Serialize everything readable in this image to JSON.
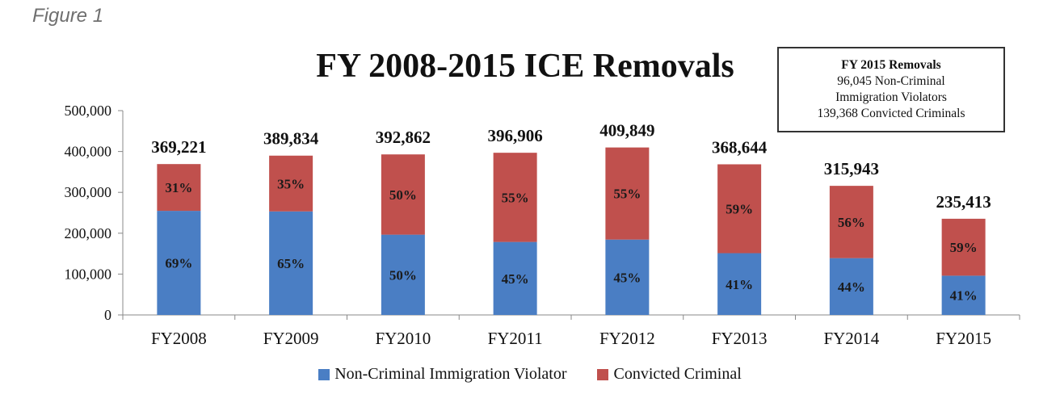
{
  "figure_label": "Figure 1",
  "info_box": {
    "heading": "FY 2015 Removals",
    "line1": "96,045 Non-Criminal",
    "line2": "Immigration Violators",
    "line3": "139,368 Convicted Criminals"
  },
  "colors": {
    "non_criminal": "#4a7ec4",
    "criminal": "#c0504d"
  },
  "chart_data": {
    "type": "bar",
    "stacked": true,
    "title": "FY 2008-2015 ICE Removals",
    "xlabel": "",
    "ylabel": "",
    "ylim": [
      0,
      500000
    ],
    "y_ticks": [
      0,
      100000,
      200000,
      300000,
      400000,
      500000
    ],
    "y_tick_labels": [
      "0",
      "100,000",
      "200,000",
      "300,000",
      "400,000",
      "500,000"
    ],
    "grid": false,
    "legend_position": "bottom",
    "categories": [
      "FY2008",
      "FY2009",
      "FY2010",
      "FY2011",
      "FY2012",
      "FY2013",
      "FY2014",
      "FY2015"
    ],
    "totals": [
      369221,
      389834,
      392862,
      396906,
      409849,
      368644,
      315943,
      235413
    ],
    "total_labels": [
      "369,221",
      "389,834",
      "392,862",
      "396,906",
      "409,849",
      "368,644",
      "315,943",
      "235,413"
    ],
    "series": [
      {
        "name": "Non-Criminal Immigration Violator",
        "values": [
          254762,
          253392,
          196431,
          178608,
          184432,
          151144,
          139015,
          96045
        ],
        "labels": [
          "69%",
          "65%",
          "50%",
          "45%",
          "45%",
          "41%",
          "44%",
          "41%"
        ]
      },
      {
        "name": "Convicted Criminal",
        "values": [
          114459,
          136442,
          196431,
          218298,
          225417,
          217500,
          176928,
          139368
        ],
        "labels": [
          "31%",
          "35%",
          "50%",
          "55%",
          "55%",
          "59%",
          "56%",
          "59%"
        ]
      }
    ]
  }
}
